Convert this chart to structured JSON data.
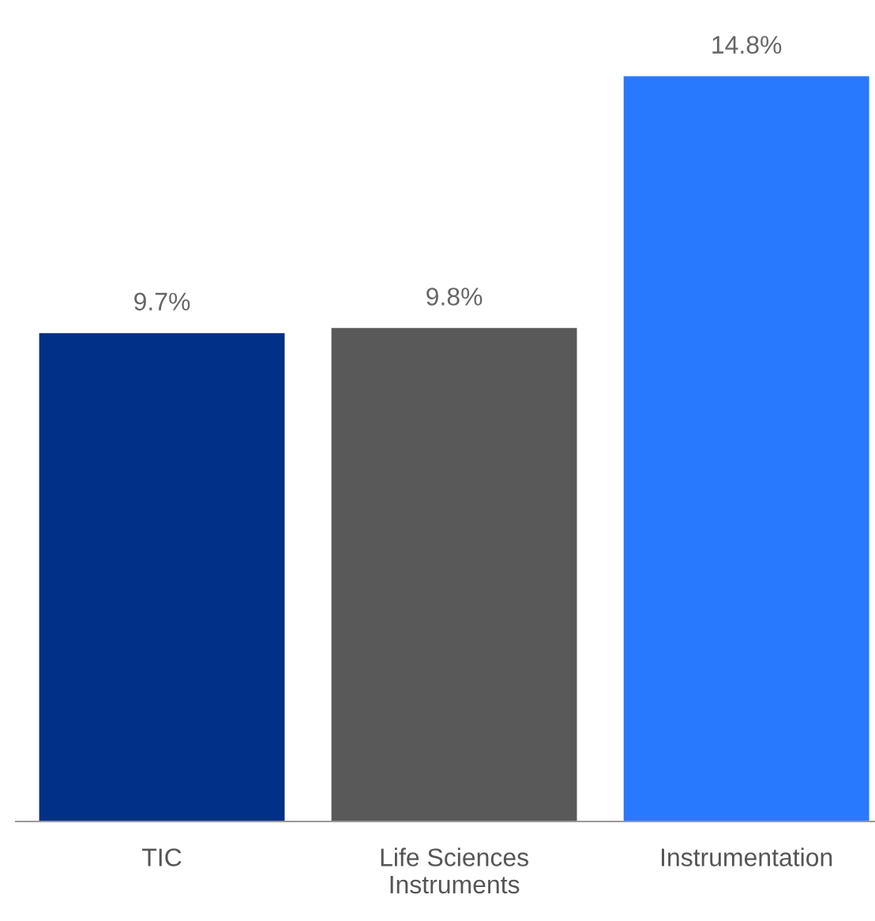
{
  "chart_data": {
    "type": "bar",
    "categories": [
      "TIC",
      "Life Sciences\nInstruments",
      "Instrumentation"
    ],
    "values": [
      9.7,
      9.8,
      14.8
    ],
    "colors": [
      "#003087",
      "#595959",
      "#2979ff"
    ],
    "value_labels": [
      "9.7%",
      "9.8%",
      "14.8%"
    ],
    "grid": false,
    "legend": false
  }
}
